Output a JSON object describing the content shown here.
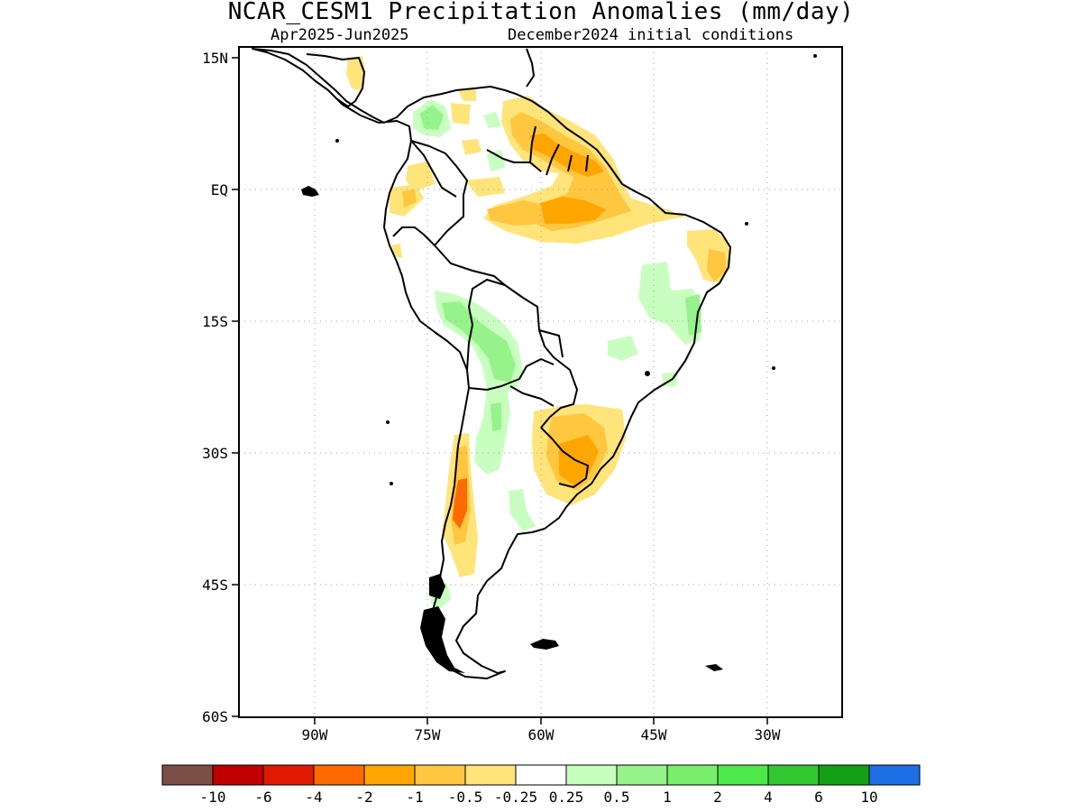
{
  "title": "NCAR_CESM1 Precipitation Anomalies (mm/day)",
  "subtitle_left": "Apr2025-Jun2025",
  "subtitle_right": "December2024 initial conditions",
  "lat_ticks": [
    "15N",
    "EQ",
    "15S",
    "30S",
    "45S",
    "60S"
  ],
  "lon_ticks": [
    "90W",
    "75W",
    "60W",
    "45W",
    "30W"
  ],
  "colorbar": {
    "labels": [
      "-10",
      "-6",
      "-4",
      "-2",
      "-1",
      "-0.5",
      "-0.25",
      "0.25",
      "0.5",
      "1",
      "2",
      "4",
      "6",
      "10"
    ],
    "colors": [
      "#7b4f45",
      "#c00000",
      "#e01a00",
      "#ff6a00",
      "#ffa500",
      "#ffc640",
      "#ffe47a",
      "#ffffff",
      "#c8ffc0",
      "#96f28a",
      "#78ee6a",
      "#4de84a",
      "#32c832",
      "#14a014",
      "#1e6ee6"
    ]
  },
  "map_colors": {
    "light_orange": "#ffe47a",
    "orange": "#ffc640",
    "dark_orange": "#ffa500",
    "red_orange": "#ff6a00",
    "light_green": "#c8ffc0",
    "green": "#96f28a",
    "mid_green": "#78ee6a",
    "coastline": "#000000",
    "grid": "#a0a0a0"
  }
}
